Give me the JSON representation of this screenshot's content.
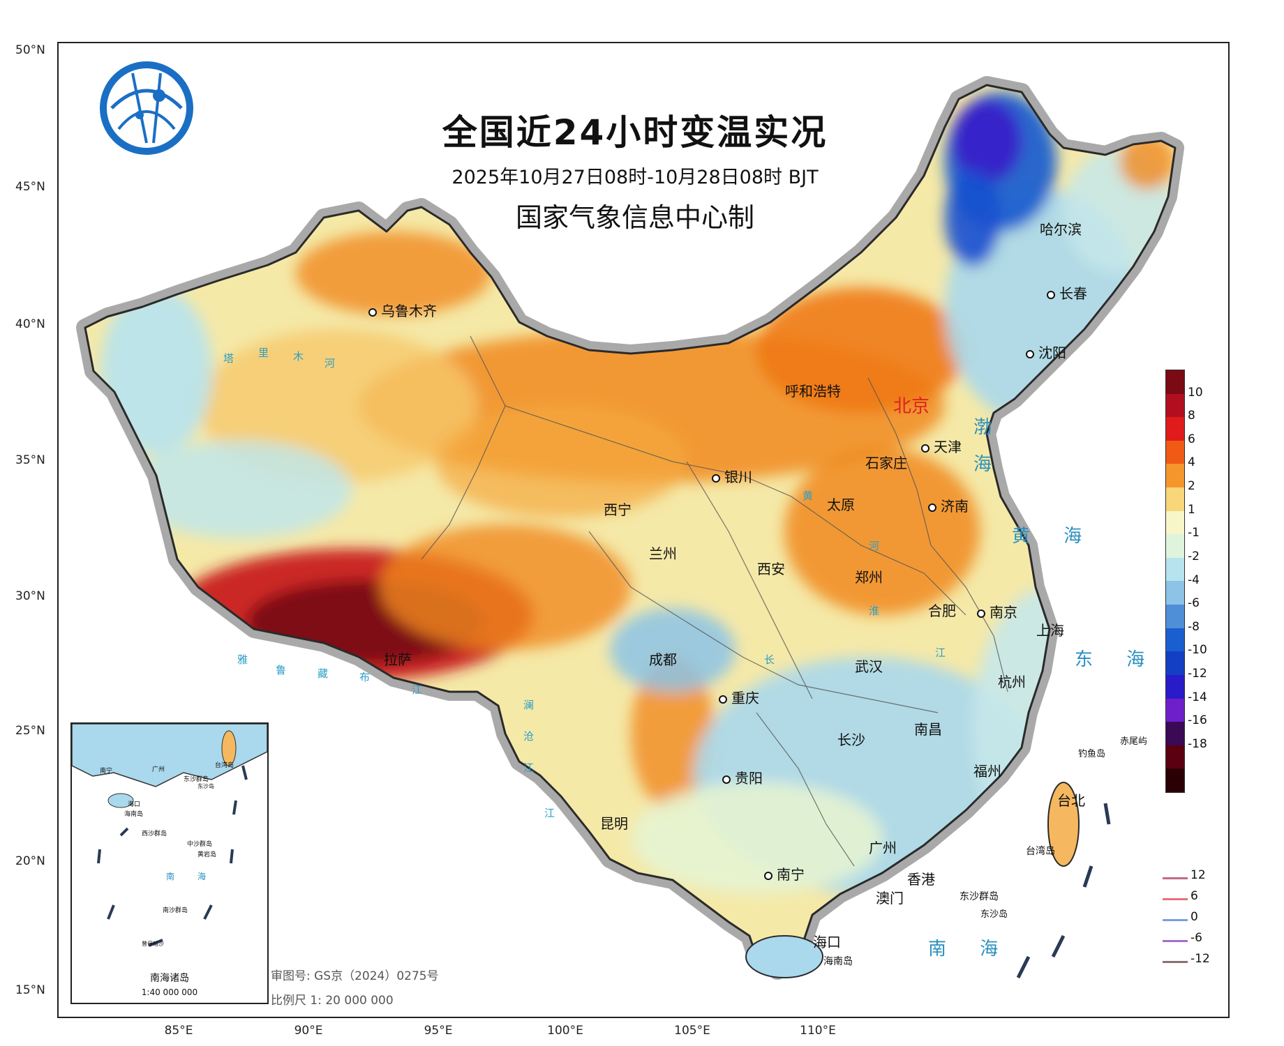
{
  "title": "全国近24小时变温实况",
  "subtitle": "2025年10月27日08时-10月28日08时 BJT",
  "organization": "国家气象信息中心制",
  "approval_number": "审图号: GS京（2024）0275号",
  "scale": "比例尺  1: 20 000 000",
  "inset": {
    "title": "南海诸岛",
    "scale": "1:40 000 000",
    "labels": [
      "南宁",
      "广州",
      "东沙群岛",
      "台湾岛",
      "海口",
      "海南岛",
      "西沙群岛",
      "中沙群岛",
      "黄岩岛",
      "南",
      "海",
      "南沙群岛",
      "曾母暗沙",
      "东沙岛"
    ]
  },
  "lat_labels": [
    "50°N",
    "45°N",
    "40°N",
    "35°N",
    "30°N",
    "25°N",
    "20°N",
    "15°N"
  ],
  "lon_labels": [
    "85°E",
    "90°E",
    "95°E",
    "100°E",
    "105°E",
    "110°E"
  ],
  "legend": {
    "colorbar_ticks": [
      "10",
      "8",
      "6",
      "4",
      "2",
      "1",
      "-1",
      "-2",
      "-4",
      "-6",
      "-8",
      "-10",
      "-12",
      "-14",
      "-16",
      "-18"
    ],
    "colors": [
      "#7a0a14",
      "#b10f20",
      "#e01b1b",
      "#f05a14",
      "#f5962d",
      "#f9d67a",
      "#f7f6c8",
      "#dff4dc",
      "#b7e3ee",
      "#8cc3e6",
      "#4e8fd8",
      "#1a5fcf",
      "#123fc4",
      "#2a1bc9",
      "#6f1fc9",
      "#3a0a55",
      "#5a0010",
      "#2b0004"
    ],
    "contour_lines": [
      {
        "label": "12",
        "color": "#c06a85"
      },
      {
        "label": "6",
        "color": "#e8707a"
      },
      {
        "label": "0",
        "color": "#7a9fe0"
      },
      {
        "label": "-6",
        "color": "#a070d0"
      },
      {
        "label": "-12",
        "color": "#8a7070"
      }
    ]
  },
  "cities": {
    "beijing": "北京",
    "tianjin": "天津",
    "shijiazhuang": "石家庄",
    "taiyuan": "太原",
    "jinan": "济南",
    "zhengzhou": "郑州",
    "xian": "西安",
    "lanzhou": "兰州",
    "xining": "西宁",
    "yinchuan": "银川",
    "hohhot": "呼和浩特",
    "urumqi": "乌鲁木齐",
    "lhasa": "拉萨",
    "chengdu": "成都",
    "chongqing": "重庆",
    "guiyang": "贵阳",
    "kunming": "昆明",
    "nanning": "南宁",
    "guangzhou": "广州",
    "hongkong": "香港",
    "macau": "澳门",
    "haikou": "海口",
    "hainan": "海南岛",
    "changsha": "长沙",
    "wuhan": "武汉",
    "nanchang": "南昌",
    "hefei": "合肥",
    "nanjing": "南京",
    "shanghai": "上海",
    "hangzhou": "杭州",
    "fuzhou": "福州",
    "taipei": "台北",
    "taiwan": "台湾岛",
    "harbin": "哈尔滨",
    "changchun": "长春",
    "shenyang": "沈阳",
    "diaoyu": "钓鱼岛",
    "chiwei": "赤尾屿",
    "dongsha_qundao": "东沙群岛",
    "dongsha_dao": "东沙岛"
  },
  "seas": {
    "bohai_a": "渤",
    "bohai_b": "海",
    "huanghai": "黄  海",
    "donghai": "东  海",
    "nanhai": "南  海"
  },
  "rivers": [
    "塔",
    "里",
    "木",
    "河",
    "雅",
    "鲁",
    "藏",
    "布",
    "江",
    "黄",
    "河",
    "长",
    "江",
    "淮",
    "江",
    "澜",
    "沧",
    "江"
  ]
}
